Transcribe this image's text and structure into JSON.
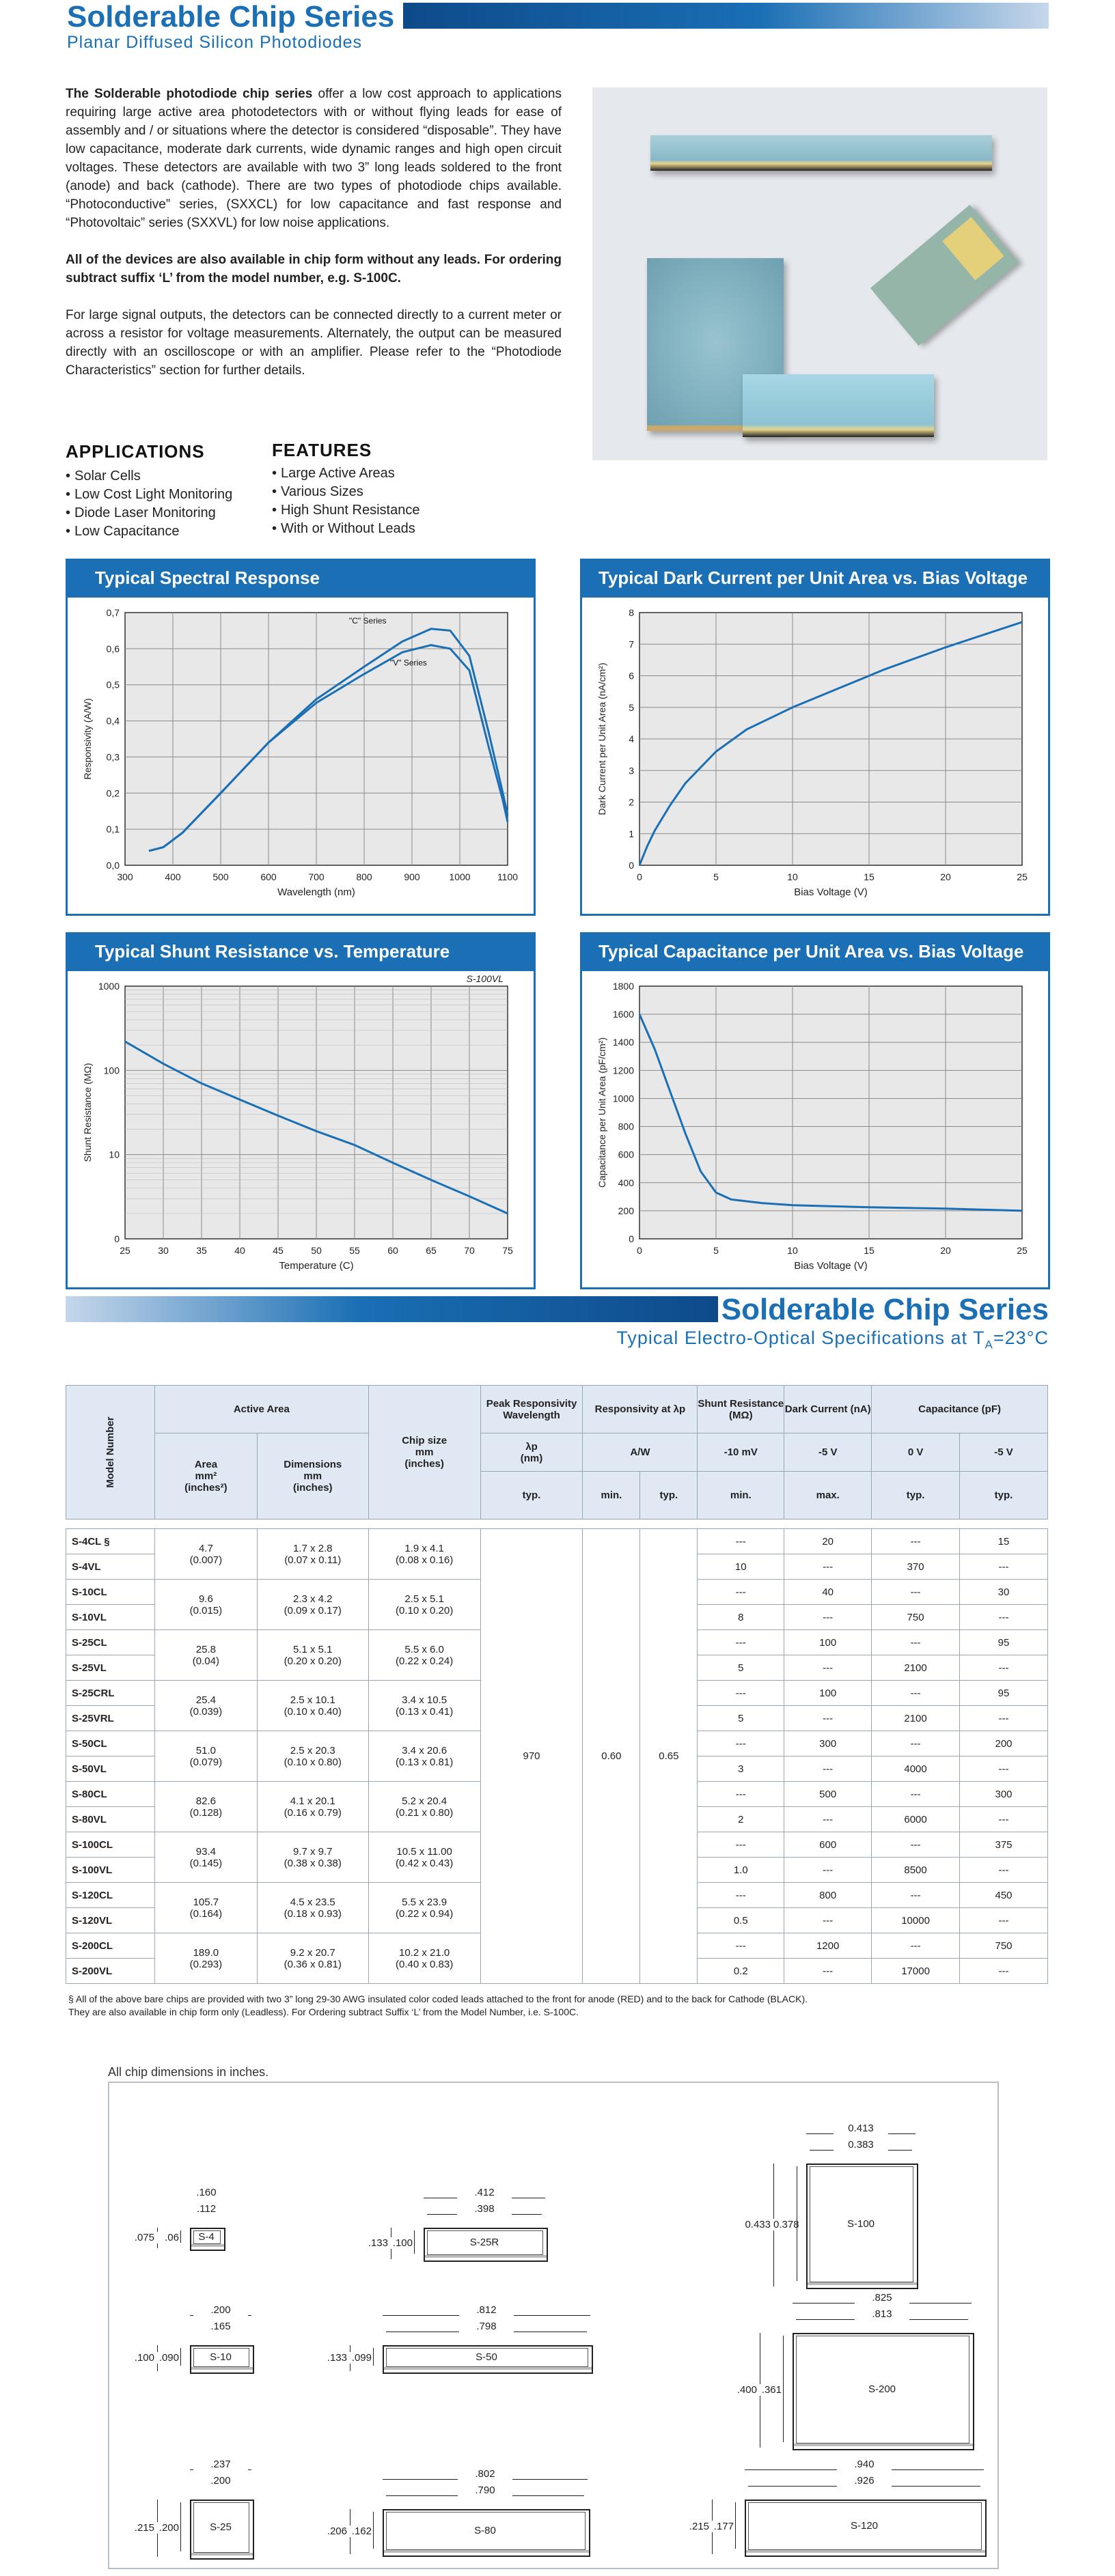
{
  "header": {
    "title": "Solderable Chip Series",
    "subtitle": "Planar Diffused Silicon Photodiodes"
  },
  "intro": {
    "p1_bold": "The Solderable photodiode chip series",
    "p1_rest": " offer a low cost approach to applications requiring large active area photodetectors with or without flying leads for ease of assembly and / or situations where the detector is considered “disposable”. They have low capacitance, moderate dark currents, wide dynamic ranges and high open circuit voltages. These detectors are available with two 3” long leads soldered to the front (anode) and back (cathode). There are two types of photodiode chips available. “Photoconductive” series, (SXXCL) for low capacitance and fast response and “Photovoltaic” series (SXXVL) for low noise applications.",
    "p2": "All of the devices are also available in chip form without any leads. For ordering subtract suffix ‘L’ from the model number, e.g. S-100C.",
    "p3": "For large signal outputs, the detectors can be connected directly to a current meter or across a resistor for voltage measurements. Alternately, the output can be measured directly with an oscilloscope or with an amplifier. Please refer to the “Photodiode Characteristics” section for further details."
  },
  "applications": {
    "title": "APPLICATIONS",
    "items": [
      "Solar Cells",
      "Low Cost Light Monitoring",
      "Diode Laser Monitoring",
      "Low Capacitance"
    ]
  },
  "features": {
    "title": "FEATURES",
    "items": [
      "Large Active Areas",
      "Various Sizes",
      "High Shunt Resistance",
      "With or Without Leads"
    ]
  },
  "chart_data": [
    {
      "type": "line",
      "title": "Typical Spectral Response",
      "xlabel": "Wavelength (nm)",
      "ylabel": "Responsivity (A/W)",
      "xlim": [
        300,
        1100
      ],
      "ylim": [
        0,
        0.7
      ],
      "grid": true,
      "xticks": [
        "300",
        "400",
        "500",
        "600",
        "700",
        "800",
        "900",
        "1000",
        "1100"
      ],
      "yticks": [
        "0,0",
        "0,1",
        "0,2",
        "0,3",
        "0,4",
        "0,5",
        "0,6",
        "0,7"
      ],
      "series": [
        {
          "name": "\"C\" Series",
          "x": [
            350,
            380,
            420,
            500,
            600,
            700,
            800,
            880,
            940,
            980,
            1020,
            1060,
            1090,
            1100
          ],
          "y": [
            0.04,
            0.05,
            0.09,
            0.2,
            0.34,
            0.46,
            0.55,
            0.62,
            0.655,
            0.65,
            0.58,
            0.37,
            0.2,
            0.14
          ]
        },
        {
          "name": "\"V\" Series",
          "x": [
            350,
            380,
            420,
            500,
            600,
            700,
            800,
            880,
            940,
            980,
            1020,
            1060,
            1090,
            1100
          ],
          "y": [
            0.04,
            0.05,
            0.09,
            0.2,
            0.34,
            0.45,
            0.53,
            0.59,
            0.61,
            0.6,
            0.54,
            0.33,
            0.18,
            0.12
          ]
        }
      ]
    },
    {
      "type": "line",
      "title": "Typical Dark Current per Unit Area vs. Bias Voltage",
      "xlabel": "Bias Voltage (V)",
      "ylabel": "Dark Current per Unit Area (nA/cm²)",
      "xlim": [
        0,
        25
      ],
      "ylim": [
        0,
        8
      ],
      "grid": true,
      "xticks": [
        "0",
        "5",
        "10",
        "15",
        "20",
        "25"
      ],
      "yticks": [
        "0",
        "1",
        "2",
        "3",
        "4",
        "5",
        "6",
        "7",
        "8"
      ],
      "series": [
        {
          "x": [
            0,
            0.5,
            1,
            2,
            3,
            5,
            7,
            10,
            13,
            16,
            20,
            25
          ],
          "y": [
            0,
            0.6,
            1.1,
            1.9,
            2.6,
            3.6,
            4.3,
            5.0,
            5.6,
            6.2,
            6.9,
            7.7
          ]
        }
      ]
    },
    {
      "type": "line",
      "title": "Typical Shunt Resistance vs. Temperature",
      "annotation": "S-100VL",
      "xlabel": "Temperature (C)",
      "ylabel": "Shunt Resistance (MΩ)",
      "xlim": [
        25,
        75
      ],
      "scale_y": "log",
      "grid": true,
      "xticks": [
        "25",
        "30",
        "35",
        "40",
        "45",
        "50",
        "55",
        "60",
        "65",
        "70",
        "75"
      ],
      "yticks": [
        "0",
        "10",
        "100",
        "1000"
      ],
      "series": [
        {
          "x": [
            25,
            30,
            35,
            40,
            45,
            50,
            55,
            60,
            65,
            70,
            75
          ],
          "y": [
            220,
            120,
            70,
            45,
            29,
            19,
            13,
            8,
            5,
            3.2,
            2
          ]
        }
      ]
    },
    {
      "type": "line",
      "title": "Typical Capacitance per Unit Area vs. Bias Voltage",
      "xlabel": "Bias Voltage (V)",
      "ylabel": "Capacitance per Unit Area (pF/cm²)",
      "xlim": [
        0,
        25
      ],
      "ylim": [
        0,
        1800
      ],
      "grid": true,
      "xticks": [
        "0",
        "5",
        "10",
        "15",
        "20",
        "25"
      ],
      "yticks": [
        "0",
        "200",
        "400",
        "600",
        "800",
        "1000",
        "1200",
        "1400",
        "1600",
        "1800"
      ],
      "series": [
        {
          "x": [
            0,
            1,
            2,
            3,
            4,
            5,
            6,
            8,
            10,
            15,
            20,
            25
          ],
          "y": [
            1600,
            1350,
            1050,
            750,
            480,
            330,
            280,
            255,
            240,
            225,
            215,
            200
          ]
        }
      ]
    }
  ],
  "spec": {
    "title": "Solderable Chip Series",
    "subtitle_pre": "Typical Electro-Optical Specifications at T",
    "subtitle_sub": "A",
    "subtitle_post": "=23°C",
    "h_model": "Model Number",
    "h_active": "Active Area",
    "h_area": "Area",
    "h_area_u1": "mm²",
    "h_area_u2": "(inches²)",
    "h_dim": "Dimensions",
    "h_dim_u1": "mm",
    "h_dim_u2": "(inches)",
    "h_chip": "Chip size",
    "h_chip_u1": "mm",
    "h_chip_u2": "(inches)",
    "h_peak": "Peak Responsivity Wavelength",
    "h_peak_sym": "λp",
    "h_peak_u": "(nm)",
    "h_resp": "Responsivity at λp",
    "h_resp_u": "A/W",
    "h_shunt": "Shunt Resistance (MΩ)",
    "h_shunt_c": "-10 mV",
    "h_dark": "Dark Current (nA)",
    "h_dark_c": "-5 V",
    "h_cap": "Capacitance (pF)",
    "h_cap_c1": "0 V",
    "h_cap_c2": "-5 V",
    "typ": "typ.",
    "min": "min.",
    "max": "max.",
    "peak_val": "970",
    "resp_min": "0.60",
    "resp_typ": "0.65",
    "groups": [
      {
        "models": [
          "S-4CL §",
          "S-4VL"
        ],
        "area": [
          "4.7",
          "(0.007)"
        ],
        "dim": [
          "1.7 x 2.8",
          "(0.07 x 0.11)"
        ],
        "chip": [
          "1.9 x 4.1",
          "(0.08 x 0.16)"
        ],
        "shunt": [
          "---",
          "10"
        ],
        "dark": [
          "20",
          "---"
        ],
        "cap0": [
          "---",
          "370"
        ],
        "cap5": [
          "15",
          "---"
        ]
      },
      {
        "models": [
          "S-10CL",
          "S-10VL"
        ],
        "area": [
          "9.6",
          "(0.015)"
        ],
        "dim": [
          "2.3 x 4.2",
          "(0.09 x 0.17)"
        ],
        "chip": [
          "2.5 x 5.1",
          "(0.10 x 0.20)"
        ],
        "shunt": [
          "---",
          "8"
        ],
        "dark": [
          "40",
          "---"
        ],
        "cap0": [
          "---",
          "750"
        ],
        "cap5": [
          "30",
          "---"
        ]
      },
      {
        "models": [
          "S-25CL",
          "S-25VL"
        ],
        "area": [
          "25.8",
          "(0.04)"
        ],
        "dim": [
          "5.1 x 5.1",
          "(0.20 x 0.20)"
        ],
        "chip": [
          "5.5 x 6.0",
          "(0.22 x 0.24)"
        ],
        "shunt": [
          "---",
          "5"
        ],
        "dark": [
          "100",
          "---"
        ],
        "cap0": [
          "---",
          "2100"
        ],
        "cap5": [
          "95",
          "---"
        ]
      },
      {
        "models": [
          "S-25CRL",
          "S-25VRL"
        ],
        "area": [
          "25.4",
          "(0.039)"
        ],
        "dim": [
          "2.5 x 10.1",
          "(0.10 x 0.40)"
        ],
        "chip": [
          "3.4 x 10.5",
          "(0.13 x 0.41)"
        ],
        "shunt": [
          "---",
          "5"
        ],
        "dark": [
          "100",
          "---"
        ],
        "cap0": [
          "---",
          "2100"
        ],
        "cap5": [
          "95",
          "---"
        ]
      },
      {
        "models": [
          "S-50CL",
          "S-50VL"
        ],
        "area": [
          "51.0",
          "(0.079)"
        ],
        "dim": [
          "2.5 x 20.3",
          "(0.10 x 0.80)"
        ],
        "chip": [
          "3.4 x 20.6",
          "(0.13 x 0.81)"
        ],
        "shunt": [
          "---",
          "3"
        ],
        "dark": [
          "300",
          "---"
        ],
        "cap0": [
          "---",
          "4000"
        ],
        "cap5": [
          "200",
          "---"
        ]
      },
      {
        "models": [
          "S-80CL",
          "S-80VL"
        ],
        "area": [
          "82.6",
          "(0.128)"
        ],
        "dim": [
          "4.1 x 20.1",
          "(0.16 x 0.79)"
        ],
        "chip": [
          "5.2 x 20.4",
          "(0.21 x 0.80)"
        ],
        "shunt": [
          "---",
          "2"
        ],
        "dark": [
          "500",
          "---"
        ],
        "cap0": [
          "---",
          "6000"
        ],
        "cap5": [
          "300",
          "---"
        ]
      },
      {
        "models": [
          "S-100CL",
          "S-100VL"
        ],
        "area": [
          "93.4",
          "(0.145)"
        ],
        "dim": [
          "9.7 x 9.7",
          "(0.38 x 0.38)"
        ],
        "chip": [
          "10.5 x 11.00",
          "(0.42 x 0.43)"
        ],
        "shunt": [
          "---",
          "1.0"
        ],
        "dark": [
          "600",
          "---"
        ],
        "cap0": [
          "---",
          "8500"
        ],
        "cap5": [
          "375",
          "---"
        ]
      },
      {
        "models": [
          "S-120CL",
          "S-120VL"
        ],
        "area": [
          "105.7",
          "(0.164)"
        ],
        "dim": [
          "4.5 x 23.5",
          "(0.18 x 0.93)"
        ],
        "chip": [
          "5.5 x 23.9",
          "(0.22 x 0.94)"
        ],
        "shunt": [
          "---",
          "0.5"
        ],
        "dark": [
          "800",
          "---"
        ],
        "cap0": [
          "---",
          "10000"
        ],
        "cap5": [
          "450",
          "---"
        ]
      },
      {
        "models": [
          "S-200CL",
          "S-200VL"
        ],
        "area": [
          "189.0",
          "(0.293)"
        ],
        "dim": [
          "9.2 x 20.7",
          "(0.36 x 0.81)"
        ],
        "chip": [
          "10.2 x 21.0",
          "(0.40 x 0.83)"
        ],
        "shunt": [
          "---",
          "0.2"
        ],
        "dark": [
          "1200",
          "---"
        ],
        "cap0": [
          "---",
          "17000"
        ],
        "cap5": [
          "750",
          "---"
        ]
      }
    ],
    "footnote1": "§  All of the above bare chips are provided with two 3” long 29-30 AWG insulated color coded leads attached to the front for anode (RED) and to the back for Cathode (BLACK).",
    "footnote2": "They are also available in chip form only (Leadless).  For Ordering subtract Suffix ‘L’ from the Model Number, i.e. S-100C."
  },
  "dims": {
    "caption": "All chip dimensions in inches.",
    "s4": {
      "label": "S-4",
      "d1": ".160",
      "d2": ".112",
      "d3": ".075",
      "d4": ".06"
    },
    "s25r": {
      "label": "S-25R",
      "d1": ".412",
      "d2": ".398",
      "d3": ".133",
      "d4": ".100"
    },
    "s100": {
      "label": "S-100",
      "d1": "0.413",
      "d2": "0.383",
      "d3": "0.433",
      "d4": "0.378"
    },
    "s10": {
      "label": "S-10",
      "d1": ".200",
      "d2": ".165",
      "d3": ".100",
      "d4": ".090"
    },
    "s50": {
      "label": "S-50",
      "d1": ".812",
      "d2": ".798",
      "d3": ".133",
      "d4": ".099"
    },
    "s200": {
      "label": "S-200",
      "d1": ".825",
      "d2": ".813",
      "d3": ".400",
      "d4": ".361"
    },
    "s25": {
      "label": "S-25",
      "d1": ".237",
      "d2": ".200",
      "d3": ".215",
      "d4": ".200"
    },
    "s80": {
      "label": "S-80",
      "d1": ".802",
      "d2": ".790",
      "d3": ".206",
      "d4": ".162"
    },
    "s120": {
      "label": "S-120",
      "d1": ".940",
      "d2": ".926",
      "d3": ".215",
      "d4": ".177"
    }
  }
}
